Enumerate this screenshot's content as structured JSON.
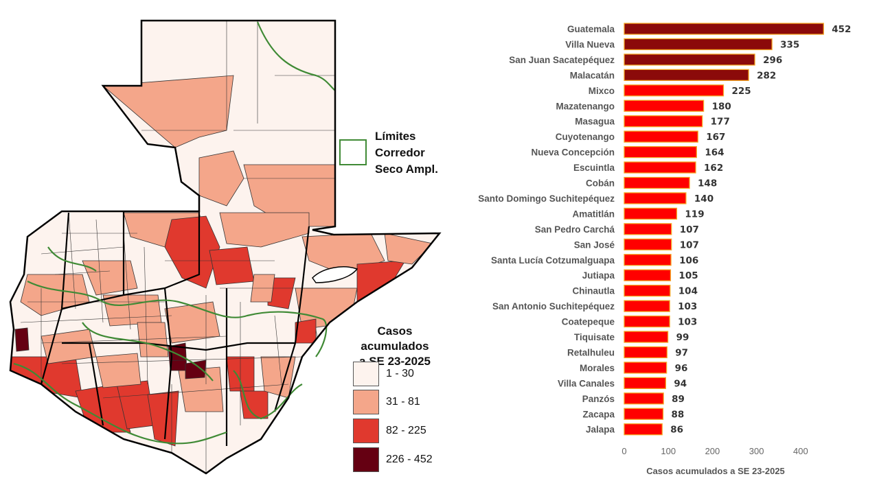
{
  "map": {
    "corridor_legend": [
      "Límites",
      "Corredor",
      "Seco Ampl."
    ],
    "legend_title": [
      "Casos acumulados",
      "a SE 23-2025"
    ],
    "legend": [
      {
        "label": "1 - 30",
        "color": "#fdf3ee"
      },
      {
        "label": "31 - 81",
        "color": "#f4a68a"
      },
      {
        "label": "82 - 225",
        "color": "#e0392e"
      },
      {
        "label": "226 - 452",
        "color": "#650012"
      }
    ],
    "corridor_color": "#3f8a35"
  },
  "chart_data": {
    "type": "bar",
    "orientation": "horizontal",
    "categories": [
      "Guatemala",
      "Villa Nueva",
      "San Juan Sacatepéquez",
      "Malacatán",
      "Mixco",
      "Mazatenango",
      "Masagua",
      "Cuyotenango",
      "Nueva Concepción",
      "Escuintla",
      "Cobán",
      "Santo Domingo Suchitepéquez",
      "Amatitlán",
      "San Pedro Carchá",
      "San José",
      "Santa Lucía Cotzumalguapa",
      "Jutiapa",
      "Chinautla",
      "San Antonio Suchitepéquez",
      "Coatepeque",
      "Tiquisate",
      "Retalhuleu",
      "Morales",
      "Villa Canales",
      "Panzós",
      "Zacapa",
      "Jalapa"
    ],
    "values": [
      452,
      335,
      296,
      282,
      225,
      180,
      177,
      167,
      164,
      162,
      148,
      140,
      119,
      107,
      107,
      106,
      105,
      104,
      103,
      103,
      99,
      97,
      96,
      94,
      89,
      88,
      86
    ],
    "value_labels": [
      "452",
      "335",
      "296",
      "282",
      "225",
      "180",
      "177",
      "167",
      "164",
      "162",
      "148",
      "140",
      "119",
      "107",
      "107",
      "106",
      "105",
      "104",
      "103",
      "103",
      "99",
      "97",
      "96",
      "94",
      "89",
      "88",
      "86"
    ],
    "xlabel": "Casos acumulados a SE 23-2025",
    "xlim": [
      0,
      450
    ],
    "xticks": [
      0,
      100,
      200,
      300,
      400
    ],
    "xtick_labels": [
      "0",
      "100",
      "200",
      "300",
      "400"
    ],
    "colors": {
      "high": "#8b0a0a",
      "mid": "#ff0000",
      "border": "#f5a623"
    },
    "high_threshold": 226
  }
}
